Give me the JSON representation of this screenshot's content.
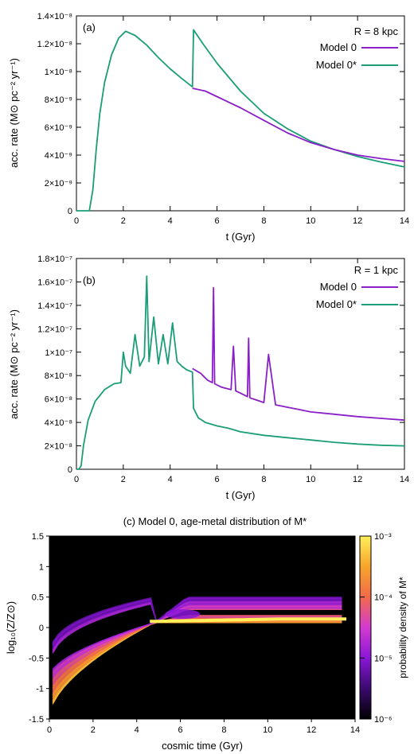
{
  "colors": {
    "model0": "#8a1fc8",
    "model0star": "#1b9e77"
  },
  "chart_data": [
    {
      "type": "line",
      "panel_label": "(a)",
      "xlabel": "t (Gyr)",
      "ylabel": "acc. rate (M⊙ pc⁻² yr⁻¹)",
      "xlim": [
        0,
        14
      ],
      "ylim": [
        0,
        1.4e-08
      ],
      "xticks": [
        "0",
        "2",
        "4",
        "6",
        "8",
        "10",
        "12",
        "14"
      ],
      "yticks": [
        "0",
        "2×10⁻⁹",
        "4×10⁻⁹",
        "6×10⁻⁹",
        "8×10⁻⁹",
        "1×10⁻⁸",
        "1.2×10⁻⁸",
        "1.4×10⁻⁸"
      ],
      "legend_title": "R = 8 kpc",
      "legend_position": "top-right",
      "series": [
        {
          "name": "Model 0",
          "color": "#8a1fc8",
          "x": [
            4.95,
            5.5,
            6,
            7,
            8,
            9,
            10,
            11,
            12,
            13,
            14
          ],
          "y": [
            8.8e-09,
            8.6e-09,
            8.2e-09,
            7.4e-09,
            6.5e-09,
            5.6e-09,
            4.9e-09,
            4.4e-09,
            4e-09,
            3.75e-09,
            3.55e-09
          ]
        },
        {
          "name": "Model 0*",
          "color": "#1b9e77",
          "x": [
            0,
            0.55,
            0.7,
            0.85,
            1.0,
            1.2,
            1.5,
            1.8,
            2.1,
            2.5,
            3.0,
            3.5,
            4.0,
            4.5,
            4.95,
            5.0,
            5.4,
            6,
            7,
            8,
            9,
            10,
            11,
            12,
            13,
            14
          ],
          "y": [
            0,
            0,
            1.5e-09,
            4.5e-09,
            7e-09,
            9.2e-09,
            1.12e-08,
            1.24e-08,
            1.29e-08,
            1.26e-08,
            1.19e-08,
            1.1e-08,
            1.02e-08,
            9.5e-09,
            8.9e-09,
            1.3e-08,
            1.2e-08,
            1.06e-08,
            8.6e-09,
            7e-09,
            5.9e-09,
            5e-09,
            4.4e-09,
            3.9e-09,
            3.5e-09,
            3.15e-09
          ]
        }
      ]
    },
    {
      "type": "line",
      "panel_label": "(b)",
      "xlabel": "t (Gyr)",
      "ylabel": "acc. rate (M⊙ pc⁻² yr⁻¹)",
      "xlim": [
        0,
        14
      ],
      "ylim": [
        0,
        1.8e-07
      ],
      "xticks": [
        "0",
        "2",
        "4",
        "6",
        "8",
        "10",
        "12",
        "14"
      ],
      "yticks": [
        "0",
        "2×10⁻⁸",
        "4×10⁻⁸",
        "6×10⁻⁸",
        "8×10⁻⁸",
        "1×10⁻⁷",
        "1.2×10⁻⁷",
        "1.4×10⁻⁷",
        "1.6×10⁻⁷",
        "1.8×10⁻⁷"
      ],
      "legend_title": "R = 1 kpc",
      "legend_position": "top-right",
      "series": [
        {
          "name": "Model 0",
          "color": "#8a1fc8",
          "x": [
            4.95,
            5.3,
            5.6,
            5.8,
            5.85,
            5.9,
            6.2,
            6.6,
            6.7,
            6.8,
            7,
            7.3,
            7.35,
            7.4,
            7.7,
            8,
            8.2,
            8.5,
            9,
            9.5,
            10,
            11,
            12,
            13,
            14
          ],
          "y": [
            8.6e-08,
            8.2e-08,
            7.6e-08,
            7.4e-08,
            1.55e-07,
            7.3e-08,
            7e-08,
            6.8e-08,
            1.05e-07,
            6.7e-08,
            6.5e-08,
            6.2e-08,
            1.12e-07,
            6.1e-08,
            5.9e-08,
            5.7e-08,
            9.8e-08,
            5.5e-08,
            5.3e-08,
            5.1e-08,
            4.9e-08,
            4.7e-08,
            4.5e-08,
            4.35e-08,
            4.2e-08
          ]
        },
        {
          "name": "Model 0*",
          "color": "#1b9e77",
          "x": [
            0,
            0.1,
            0.2,
            0.3,
            0.5,
            0.8,
            1.2,
            1.6,
            1.9,
            2.0,
            2.1,
            2.3,
            2.5,
            2.7,
            2.9,
            3.0,
            3.1,
            3.3,
            3.5,
            3.7,
            3.9,
            4.1,
            4.3,
            4.5,
            4.7,
            4.95,
            5.0,
            5.2,
            5.5,
            6,
            6.5,
            7,
            8,
            9,
            10,
            11,
            12,
            13,
            14
          ],
          "y": [
            0,
            0,
            3e-09,
            2e-08,
            4.2e-08,
            5.8e-08,
            6.8e-08,
            7.3e-08,
            7.4e-08,
            1e-07,
            8.8e-08,
            8.2e-08,
            1.15e-07,
            8.8e-08,
            9.6e-08,
            1.65e-07,
            9.2e-08,
            1.3e-07,
            9e-08,
            1.15e-07,
            9e-08,
            1.25e-07,
            9.2e-08,
            8.8e-08,
            8.5e-08,
            8.3e-08,
            5.2e-08,
            4.4e-08,
            4e-08,
            3.7e-08,
            3.5e-08,
            3.2e-08,
            2.9e-08,
            2.7e-08,
            2.5e-08,
            2.3e-08,
            2.15e-08,
            2.05e-08,
            2e-08
          ]
        }
      ]
    },
    {
      "type": "heatmap",
      "title": "(c) Model 0, age-metal distribution of M*",
      "xlabel": "cosmic time (Gyr)",
      "ylabel": "log₁₀(Z/Z⊙)",
      "xlim": [
        0,
        14
      ],
      "ylim": [
        -1.5,
        1.5
      ],
      "xticks": [
        "0",
        "2",
        "4",
        "6",
        "8",
        "10",
        "12",
        "14"
      ],
      "yticks": [
        "-1.5",
        "-1",
        "-0.5",
        "0",
        "0.5",
        "1",
        "1.5"
      ],
      "colorbar_label": "probability density of M*",
      "colorbar_ticks": [
        "10⁻⁶",
        "10⁻⁵",
        "10⁻⁴",
        "10⁻³"
      ],
      "colorbar_scale": "log",
      "colorbar_range": [
        1e-06,
        0.001
      ],
      "background": "#000000",
      "colormap": [
        "#000000",
        "#3b0a6e",
        "#8a16d8",
        "#d43ad0",
        "#f26a4a",
        "#f7a52a",
        "#fff05a"
      ]
    }
  ]
}
